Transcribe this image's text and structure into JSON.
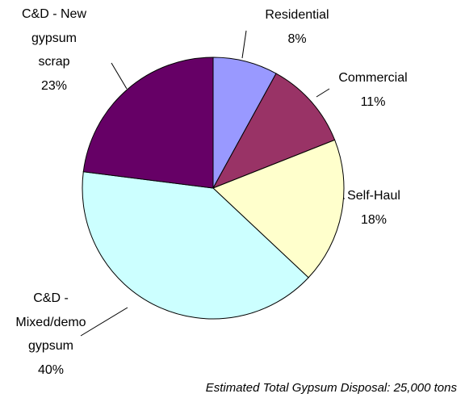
{
  "chart_data": {
    "type": "pie",
    "categories": [
      "Residential",
      "Commercial",
      "Self-Haul",
      "C&D - Mixed/demo gypsum",
      "C&D - New gypsum scrap"
    ],
    "values": [
      8,
      11,
      18,
      40,
      23
    ],
    "value_labels": [
      "8%",
      "11%",
      "18%",
      "40%",
      "23%"
    ],
    "colors": [
      "#9999ff",
      "#993366",
      "#ffffcc",
      "#ccffff",
      "#660066"
    ],
    "annotation": "Estimated Total Gypsum Disposal: 25,000 tons"
  }
}
